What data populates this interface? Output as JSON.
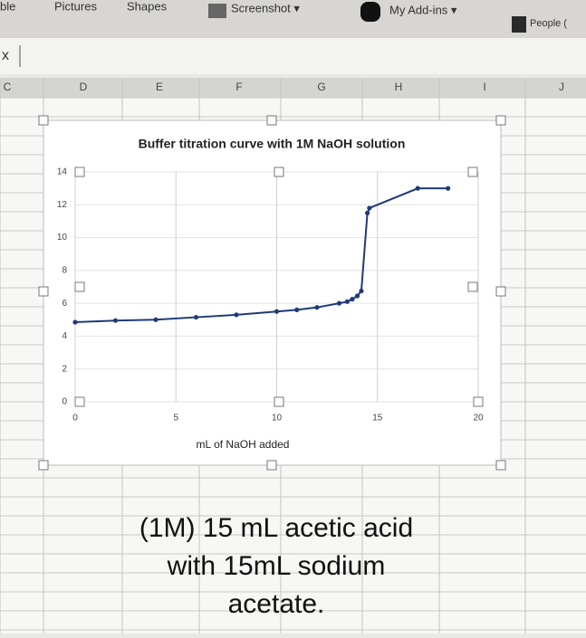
{
  "ribbon": [
    "ble",
    "Pictures",
    "Shapes",
    "Screenshot ▾",
    "My Add-ins ▾",
    "People ("
  ],
  "formula_bar": "x",
  "columns": [
    "C",
    "D",
    "E",
    "F",
    "G",
    "H",
    "I",
    "J"
  ],
  "chart_data": {
    "type": "line",
    "title": "Buffer titration curve with 1M NaOH solution",
    "x_label": "mL of NaOH added",
    "x": [
      0,
      2,
      4,
      6,
      8,
      10,
      11,
      12,
      13.1,
      13.5,
      13.75,
      14,
      14.2,
      14.5,
      14.6,
      17,
      18.5
    ],
    "values": [
      4.85,
      4.95,
      5.0,
      5.15,
      5.3,
      5.5,
      5.6,
      5.75,
      6.0,
      6.1,
      6.25,
      6.45,
      6.75,
      11.5,
      11.8,
      13.0,
      13.0
    ],
    "color": "#1f3a7a",
    "xlim": [
      0,
      20
    ],
    "xticks": [
      0,
      5,
      10,
      15,
      20
    ],
    "ylim": [
      0,
      14
    ],
    "yticks": [
      0,
      2,
      4,
      6,
      8,
      10,
      12,
      14
    ],
    "grid": true
  },
  "caption": [
    "(1M) 15 mL acetic acid",
    "with 15mL sodium",
    "acetate."
  ]
}
